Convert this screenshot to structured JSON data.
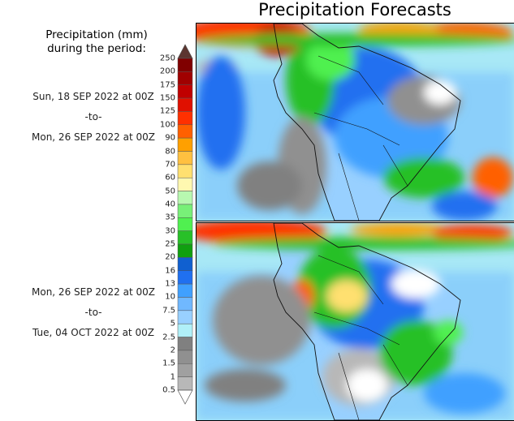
{
  "chart_data": {
    "type": "heatmap",
    "title": "Precipitation Forecasts",
    "legend_title": "Precipitation (mm) during the period:",
    "colorbar": {
      "ticks": [
        "250",
        "200",
        "175",
        "150",
        "125",
        "100",
        "90",
        "80",
        "70",
        "60",
        "50",
        "40",
        "35",
        "30",
        "25",
        "20",
        "16",
        "13",
        "10",
        "7.5",
        "5",
        "2.5",
        "2",
        "1.5",
        "1",
        "0.5"
      ],
      "over_color": "#5c3530",
      "under_color": "#ffffff",
      "colors": [
        "#800000",
        "#a00000",
        "#c00000",
        "#e01000",
        "#ff3000",
        "#ff6000",
        "#ffa000",
        "#ffc040",
        "#ffe070",
        "#fff8b0",
        "#b8f8b0",
        "#78f078",
        "#50f050",
        "#28c028",
        "#10a010",
        "#1060d0",
        "#2070f0",
        "#40a0ff",
        "#70b8ff",
        "#98d0ff",
        "#b0f0f8",
        "#808080",
        "#909090",
        "#a0a0a0",
        "#b8b8b8"
      ]
    },
    "panels": [
      {
        "start": "Sun, 18 SEP 2022 at 00Z",
        "sep": "-to-",
        "end": "Mon, 26 SEP 2022 at 00Z"
      },
      {
        "start": "Mon, 26 SEP 2022 at 00Z",
        "sep": "-to-",
        "end": "Tue, 04 OCT 2022 at 00Z"
      }
    ]
  }
}
